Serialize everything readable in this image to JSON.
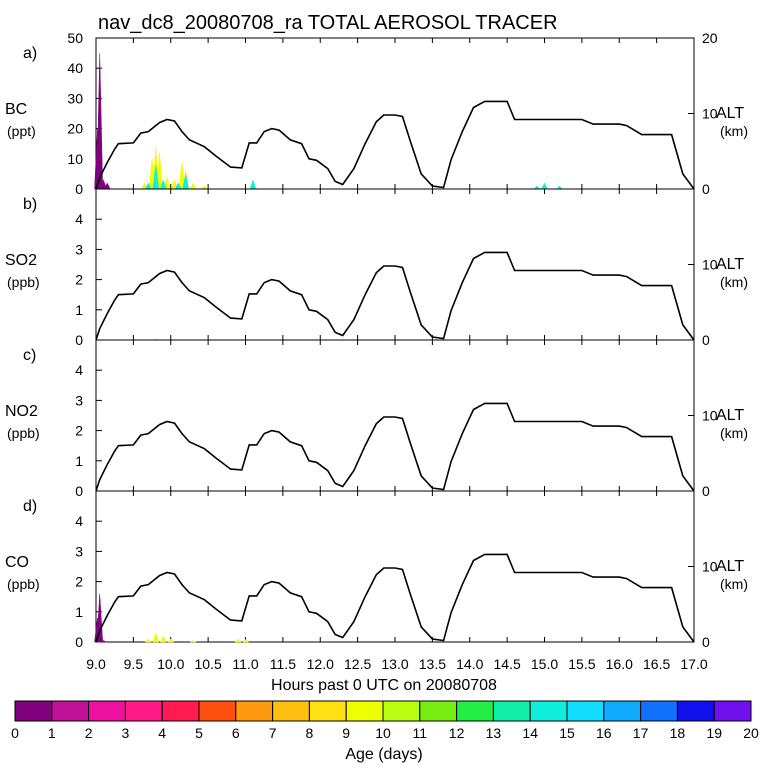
{
  "title": "nav_dc8_20080708_ra TOTAL AEROSOL TRACER",
  "xlabel": "Hours past 0 UTC on 20080708",
  "x_ticks": [
    "9.0",
    "9.5",
    "10.0",
    "10.5",
    "11.0",
    "11.5",
    "12.0",
    "12.5",
    "13.0",
    "13.5",
    "14.0",
    "14.5",
    "15.0",
    "15.5",
    "16.0",
    "16.5",
    "17.0"
  ],
  "xlim": [
    9.0,
    17.0
  ],
  "right_axis": {
    "label": "ALT",
    "unit": "(km)",
    "ticks": [
      "0",
      "10",
      "20"
    ],
    "ylim": [
      0,
      20
    ]
  },
  "colorbar": {
    "label": "Age (days)",
    "ticks": [
      "0",
      "1",
      "2",
      "3",
      "4",
      "5",
      "6",
      "7",
      "8",
      "9",
      "10",
      "11",
      "12",
      "13",
      "14",
      "15",
      "16",
      "17",
      "18",
      "19",
      "20"
    ],
    "colors": [
      "#800080",
      "#c0109a",
      "#ee10a0",
      "#ff1a88",
      "#ff1a50",
      "#ff5010",
      "#ff9a10",
      "#ffbf10",
      "#ffe010",
      "#eeff00",
      "#bbff10",
      "#77ee10",
      "#22ee44",
      "#10eeaa",
      "#10eedd",
      "#10ddff",
      "#10aaff",
      "#1070ff",
      "#1010ee",
      "#7010ee"
    ]
  },
  "chart_data": [
    {
      "type": "area",
      "panel": "a)",
      "species": "BC",
      "unit": "(ppt)",
      "ylim": [
        0,
        50
      ],
      "y_ticks": [
        "0",
        "10",
        "20",
        "30",
        "40",
        "50"
      ],
      "series": [
        {
          "name": "BC age 0-1 d",
          "color": "#800080",
          "x": [
            9.02,
            9.05,
            9.1,
            9.15
          ],
          "values": [
            20,
            45,
            3,
            2
          ]
        },
        {
          "name": "BC age 8-11 d",
          "color": "#eeff00",
          "x": [
            9.65,
            9.75,
            9.8,
            9.85,
            9.95,
            10.05,
            10.15,
            10.2,
            10.3,
            10.45
          ],
          "values": [
            2,
            10,
            14,
            12,
            4,
            3,
            9,
            6,
            2,
            1
          ]
        },
        {
          "name": "BC age 13-16 d",
          "color": "#10eedd",
          "x": [
            9.7,
            9.8,
            9.9,
            10.1,
            10.2,
            11.1,
            14.9,
            15.0,
            15.2
          ],
          "values": [
            2,
            8,
            3,
            2,
            5,
            3,
            1,
            2,
            1
          ]
        }
      ]
    },
    {
      "type": "area",
      "panel": "b)",
      "species": "SO2",
      "unit": "(ppb)",
      "ylim": [
        0,
        5
      ],
      "y_ticks": [
        "0",
        "1",
        "2",
        "3",
        "4"
      ],
      "series": [
        {
          "name": "SO2 age 14 d",
          "color": "#10eedd",
          "x": [
            9.8
          ],
          "values": [
            0.02
          ]
        }
      ]
    },
    {
      "type": "area",
      "panel": "c)",
      "species": "NO2",
      "unit": "(ppb)",
      "ylim": [
        0,
        5
      ],
      "y_ticks": [
        "0",
        "1",
        "2",
        "3",
        "4"
      ],
      "series": []
    },
    {
      "type": "area",
      "panel": "d)",
      "species": "CO",
      "unit": "(ppb)",
      "ylim": [
        0,
        5
      ],
      "y_ticks": [
        "0",
        "1",
        "2",
        "3",
        "4"
      ],
      "series": [
        {
          "name": "CO age 0-1 d",
          "color": "#800080",
          "x": [
            9.02,
            9.05,
            9.1
          ],
          "values": [
            0.8,
            1.6,
            0.05
          ]
        },
        {
          "name": "CO age 8-10 d",
          "color": "#eeff00",
          "x": [
            9.7,
            9.8,
            9.9,
            10.0,
            10.3,
            10.9,
            11.0
          ],
          "values": [
            0.1,
            0.3,
            0.2,
            0.1,
            0.05,
            0.1,
            0.08
          ]
        }
      ]
    }
  ],
  "altitude_km": {
    "x": [
      9.0,
      9.05,
      9.15,
      9.25,
      9.3,
      9.5,
      9.6,
      9.7,
      9.85,
      9.95,
      10.05,
      10.15,
      10.25,
      10.45,
      10.6,
      10.8,
      10.95,
      11.05,
      11.15,
      11.25,
      11.35,
      11.45,
      11.6,
      11.75,
      11.85,
      11.95,
      12.1,
      12.2,
      12.3,
      12.45,
      12.6,
      12.75,
      12.85,
      13.0,
      13.1,
      13.2,
      13.35,
      13.5,
      13.65,
      13.75,
      13.9,
      14.05,
      14.2,
      14.5,
      14.6,
      15.0,
      15.5,
      15.65,
      16.0,
      16.1,
      16.3,
      16.5,
      16.7,
      16.85,
      17.0
    ],
    "values": [
      0,
      1.5,
      3.5,
      5.3,
      6.0,
      6.1,
      7.4,
      7.6,
      8.8,
      9.2,
      9.0,
      7.6,
      6.5,
      5.6,
      4.4,
      2.9,
      2.8,
      6.1,
      6.1,
      7.6,
      8.0,
      7.8,
      6.5,
      6.0,
      4.0,
      3.8,
      2.7,
      1.0,
      0.6,
      2.7,
      6.0,
      8.9,
      9.8,
      9.8,
      9.6,
      6.5,
      2.0,
      0.4,
      0.2,
      3.9,
      7.6,
      10.8,
      11.6,
      11.6,
      9.2,
      9.2,
      9.2,
      8.6,
      8.6,
      8.4,
      7.2,
      7.2,
      7.2,
      2.0,
      0
    ]
  }
}
